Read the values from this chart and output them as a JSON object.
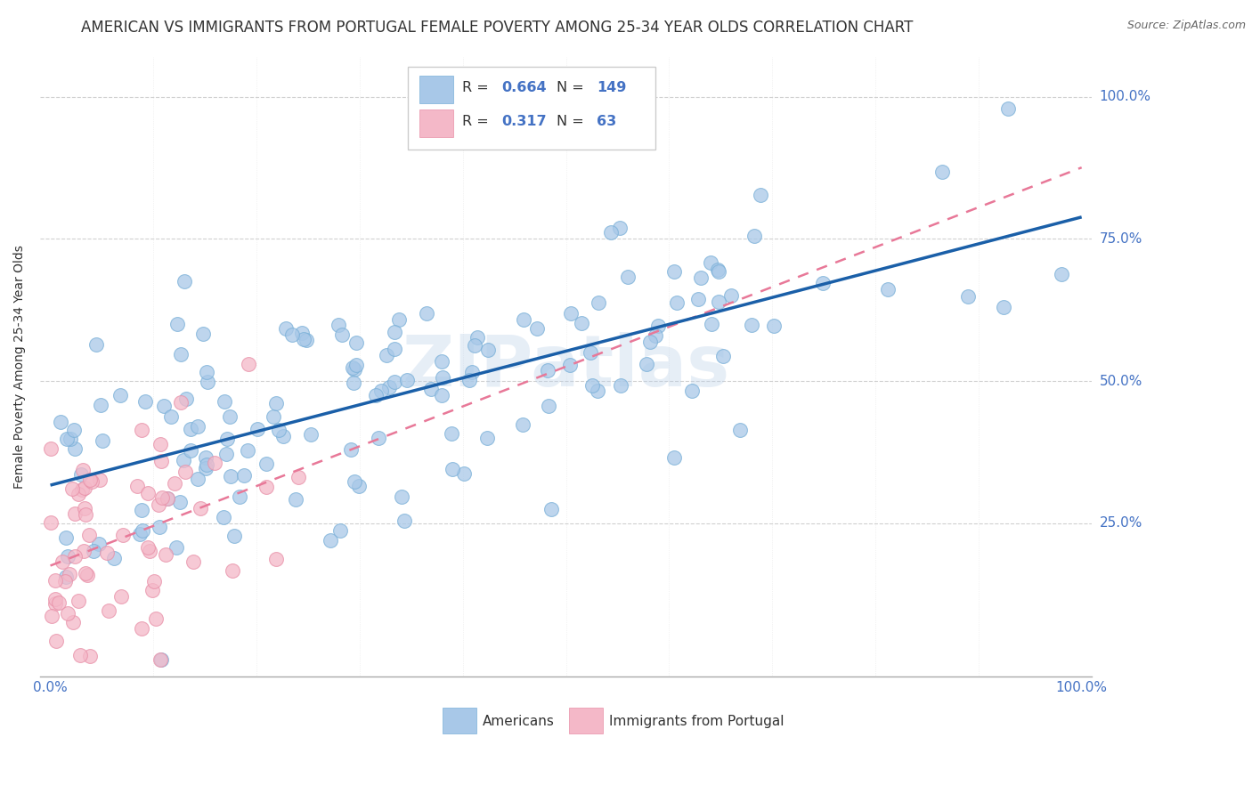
{
  "title": "AMERICAN VS IMMIGRANTS FROM PORTUGAL FEMALE POVERTY AMONG 25-34 YEAR OLDS CORRELATION CHART",
  "source": "Source: ZipAtlas.com",
  "ylabel": "Female Poverty Among 25-34 Year Olds",
  "legend_label1": "Americans",
  "legend_label2": "Immigrants from Portugal",
  "R1": 0.664,
  "N1": 149,
  "R2": 0.317,
  "N2": 63,
  "color1": "#a8c8e8",
  "color1_edge": "#7ab0d8",
  "color2": "#f4b8c8",
  "color2_edge": "#e890a8",
  "line1_color": "#1a5fa8",
  "line2_color": "#e87898",
  "text_color_blue": "#4472c4",
  "text_color_dark": "#333333",
  "watermark": "ZIPatlas",
  "title_fontsize": 12,
  "label_fontsize": 10,
  "tick_fontsize": 11,
  "background_color": "#ffffff",
  "grid_color": "#d0d0d0",
  "ytick_labels": [
    "25.0%",
    "50.0%",
    "75.0%",
    "100.0%"
  ],
  "ytick_positions": [
    0.25,
    0.5,
    0.75,
    1.0
  ]
}
